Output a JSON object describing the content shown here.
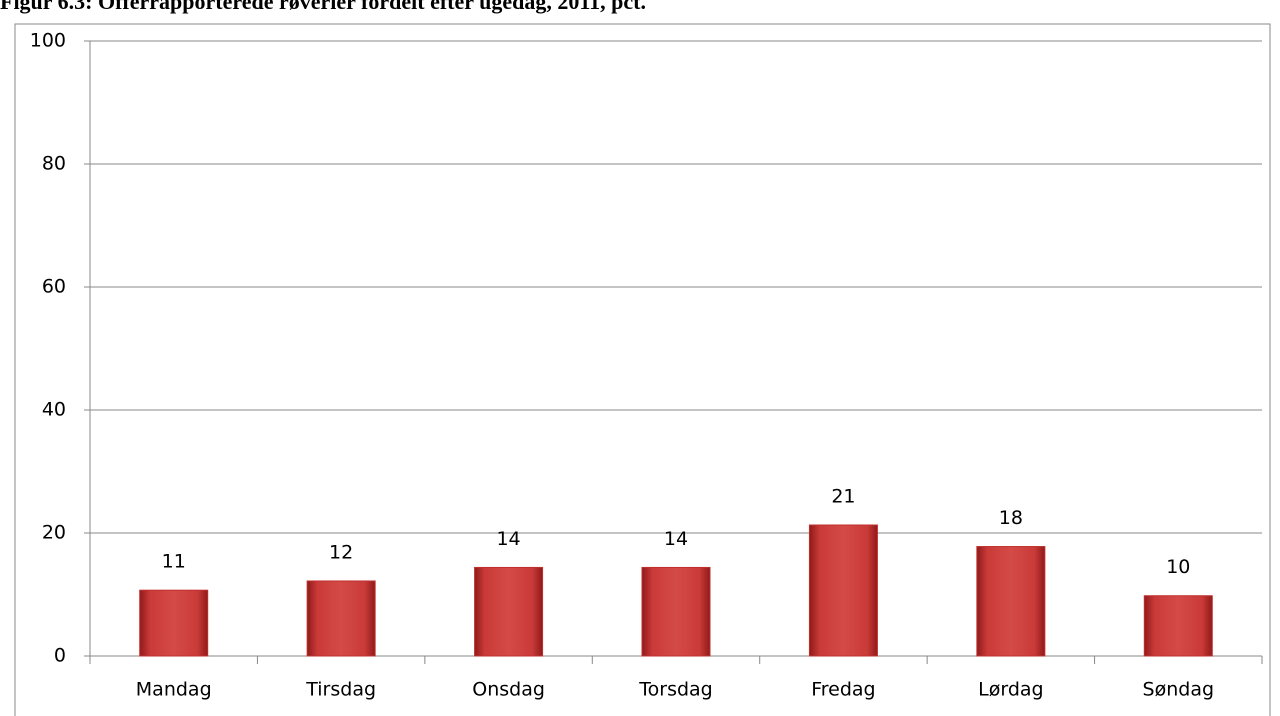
{
  "chart_data": {
    "type": "bar",
    "title": "Figur 6.3: Offerrapporterede røverier fordelt efter ugedag, 2011, pct.",
    "categories": [
      "Mandag",
      "Tirsdag",
      "Onsdag",
      "Torsdag",
      "Fredag",
      "Lørdag",
      "Søndag"
    ],
    "values": [
      10.7,
      12.2,
      14.4,
      14.4,
      21.3,
      17.8,
      9.8
    ],
    "value_labels": [
      "11",
      "12",
      "14",
      "14",
      "21",
      "18",
      "10"
    ],
    "color": "#c0302e",
    "ylim": [
      0,
      100
    ],
    "yticks": [
      0,
      20,
      40,
      60,
      80,
      100
    ],
    "grid": true
  }
}
